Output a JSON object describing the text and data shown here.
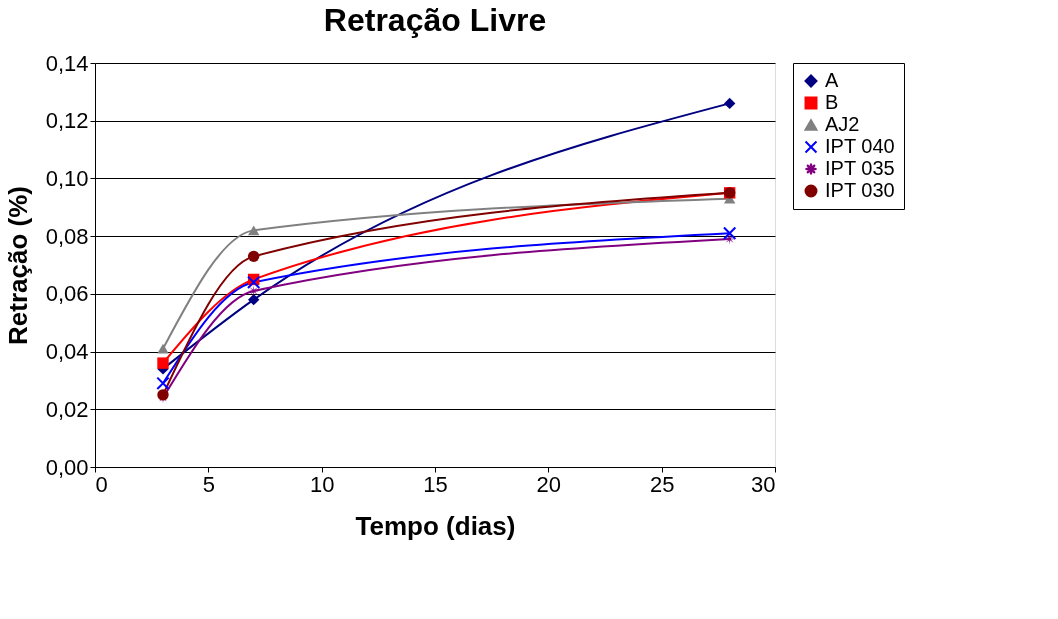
{
  "chart_data": {
    "type": "line",
    "title": "Retração Livre",
    "xlabel": "Tempo (dias)",
    "ylabel": "Retração (%)",
    "x": [
      3,
      7,
      28
    ],
    "series": [
      {
        "name": "A",
        "color": "#000080",
        "marker": "diamond",
        "values": [
          0.034,
          0.058,
          0.126
        ]
      },
      {
        "name": "B",
        "color": "#ff0000",
        "marker": "square",
        "values": [
          0.036,
          0.065,
          0.095
        ]
      },
      {
        "name": "AJ2",
        "color": "#808080",
        "marker": "triangle",
        "values": [
          0.041,
          0.082,
          0.093
        ]
      },
      {
        "name": "IPT 040",
        "color": "#0000ff",
        "marker": "cross",
        "values": [
          0.029,
          0.064,
          0.081
        ]
      },
      {
        "name": "IPT 035",
        "color": "#800080",
        "marker": "star",
        "values": [
          0.024,
          0.061,
          0.079
        ]
      },
      {
        "name": "IPT 030",
        "color": "#800000",
        "marker": "circle",
        "values": [
          0.025,
          0.073,
          0.095
        ]
      }
    ],
    "xlim": [
      0,
      30
    ],
    "xticks": [
      0,
      5,
      10,
      15,
      20,
      25,
      30
    ],
    "ylim": [
      0,
      0.14
    ],
    "yticks": [
      {
        "value": 0,
        "label": "0,00"
      },
      {
        "value": 0.02,
        "label": "0,02"
      },
      {
        "value": 0.04,
        "label": "0,04"
      },
      {
        "value": 0.06,
        "label": "0,06"
      },
      {
        "value": 0.08,
        "label": "0,08"
      },
      {
        "value": 0.1,
        "label": "0,10"
      },
      {
        "value": 0.12,
        "label": "0,12"
      },
      {
        "value": 0.14,
        "label": "0,14"
      }
    ],
    "grid": "y",
    "legend": "right",
    "line_style": "solid"
  }
}
